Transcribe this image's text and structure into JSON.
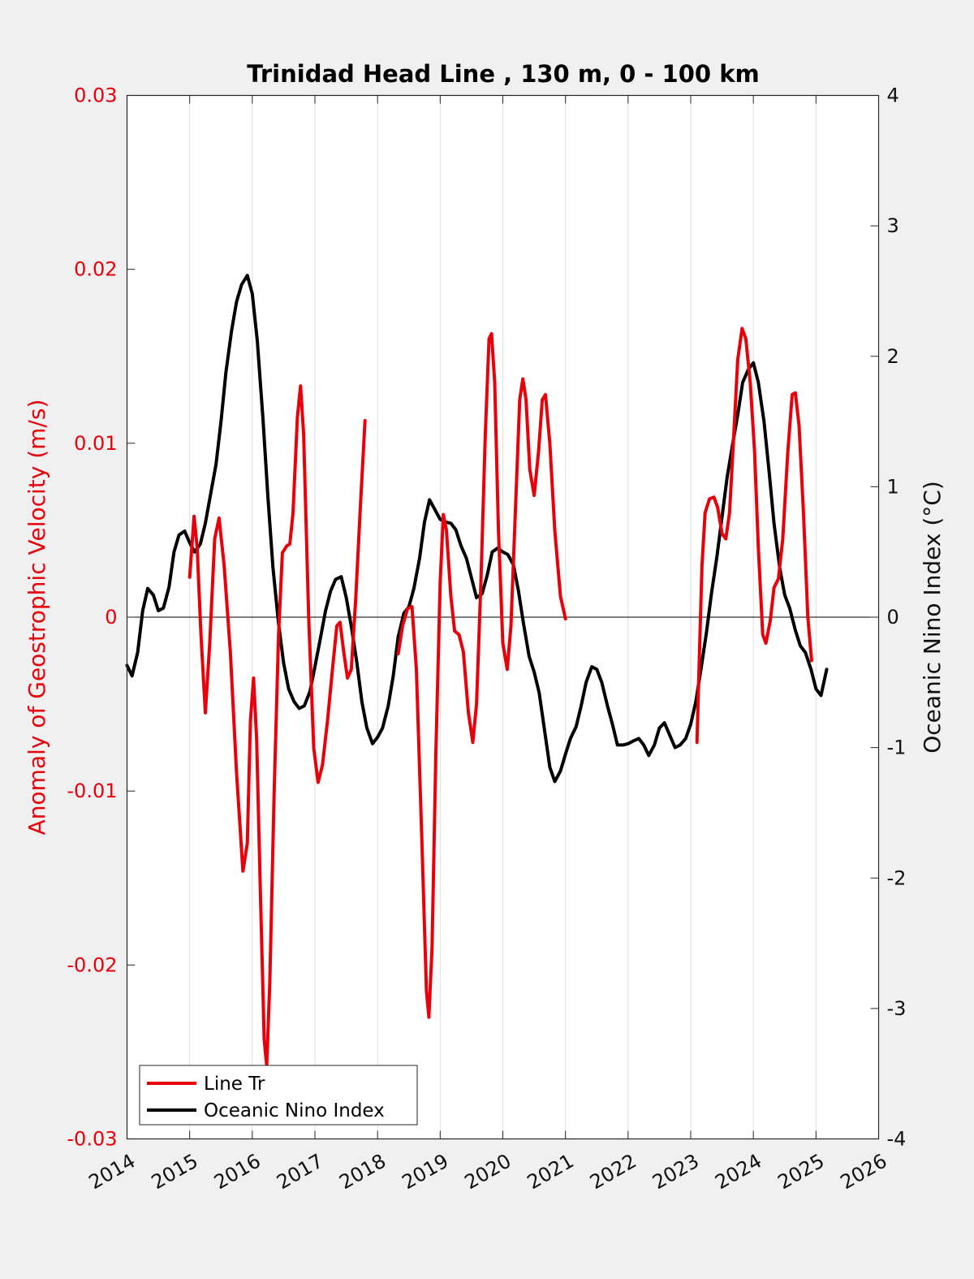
{
  "chart_data": {
    "type": "line",
    "title": "Trinidad Head Line , 130 m, 0 - 100 km",
    "ylabel_left": "Anomaly of Geostrophic Velocity (m/s)",
    "ylabel_right": "Oceanic Nino Index (°C)",
    "xlim": [
      2014,
      2026
    ],
    "ylim_left": [
      -0.03,
      0.03
    ],
    "ylim_right": [
      -4,
      4
    ],
    "x_ticks": [
      "2014",
      "2015",
      "2016",
      "2017",
      "2018",
      "2019",
      "2020",
      "2021",
      "2022",
      "2023",
      "2024",
      "2025",
      "2026"
    ],
    "y_left_ticks": [
      "-0.03",
      "-0.02",
      "-0.01",
      "0",
      "0.01",
      "0.02",
      "0.03"
    ],
    "y_right_ticks": [
      "-4",
      "-3",
      "-2",
      "-1",
      "0",
      "1",
      "2",
      "3",
      "4"
    ],
    "grid": "vertical",
    "legend_position": "bottom-left",
    "colors": {
      "velocity": "#e8000b",
      "oni": "#000000",
      "zero_line": "#000000",
      "background": "#f0f0f0"
    },
    "series": [
      {
        "name": "Line Tr",
        "axis": "left",
        "color": "#e8000b",
        "segments": [
          [
            [
              2015.0,
              0.0023
            ],
            [
              2015.07,
              0.0058
            ],
            [
              2015.12,
              0.004
            ],
            [
              2015.18,
              -0.001
            ],
            [
              2015.25,
              -0.0055
            ],
            [
              2015.32,
              -0.0015
            ],
            [
              2015.4,
              0.0045
            ],
            [
              2015.47,
              0.0057
            ],
            [
              2015.55,
              0.003
            ],
            [
              2015.65,
              -0.002
            ],
            [
              2015.75,
              -0.009
            ],
            [
              2015.85,
              -0.0146
            ],
            [
              2015.92,
              -0.013
            ],
            [
              2015.97,
              -0.006
            ],
            [
              2016.02,
              -0.0035
            ],
            [
              2016.07,
              -0.007
            ],
            [
              2016.13,
              -0.016
            ],
            [
              2016.19,
              -0.0243
            ],
            [
              2016.23,
              -0.0258
            ],
            [
              2016.28,
              -0.021
            ],
            [
              2016.35,
              -0.01
            ],
            [
              2016.42,
              -0.001
            ],
            [
              2016.48,
              0.0037
            ],
            [
              2016.55,
              0.0041
            ],
            [
              2016.6,
              0.0042
            ],
            [
              2016.65,
              0.006
            ],
            [
              2016.72,
              0.0115
            ],
            [
              2016.77,
              0.0133
            ],
            [
              2016.82,
              0.0105
            ],
            [
              2016.9,
              0.0
            ],
            [
              2016.98,
              -0.0075
            ],
            [
              2017.05,
              -0.0095
            ],
            [
              2017.12,
              -0.0085
            ],
            [
              2017.2,
              -0.006
            ],
            [
              2017.28,
              -0.003
            ],
            [
              2017.35,
              -0.0005
            ],
            [
              2017.4,
              -0.0003
            ],
            [
              2017.46,
              -0.002
            ],
            [
              2017.52,
              -0.0035
            ],
            [
              2017.58,
              -0.003
            ],
            [
              2017.65,
              0.001
            ],
            [
              2017.72,
              0.006
            ],
            [
              2017.8,
              0.0113
            ]
          ],
          [
            [
              2018.33,
              -0.0021
            ],
            [
              2018.4,
              -0.0005
            ],
            [
              2018.48,
              0.0005
            ],
            [
              2018.55,
              0.0006
            ],
            [
              2018.62,
              -0.003
            ],
            [
              2018.7,
              -0.012
            ],
            [
              2018.78,
              -0.0215
            ],
            [
              2018.82,
              -0.023
            ],
            [
              2018.87,
              -0.019
            ],
            [
              2018.93,
              -0.008
            ],
            [
              2019.0,
              0.002
            ],
            [
              2019.05,
              0.0059
            ],
            [
              2019.1,
              0.005
            ],
            [
              2019.17,
              0.0012
            ],
            [
              2019.23,
              -0.0008
            ],
            [
              2019.3,
              -0.001
            ],
            [
              2019.37,
              -0.002
            ],
            [
              2019.45,
              -0.0055
            ],
            [
              2019.52,
              -0.0072
            ],
            [
              2019.58,
              -0.005
            ],
            [
              2019.65,
              0.002
            ],
            [
              2019.72,
              0.0105
            ],
            [
              2019.78,
              0.016
            ],
            [
              2019.82,
              0.0163
            ],
            [
              2019.87,
              0.0135
            ],
            [
              2019.93,
              0.005
            ],
            [
              2020.0,
              -0.0015
            ],
            [
              2020.07,
              -0.003
            ],
            [
              2020.13,
              -0.0005
            ],
            [
              2020.2,
              0.006
            ],
            [
              2020.27,
              0.0125
            ],
            [
              2020.32,
              0.0137
            ],
            [
              2020.37,
              0.0125
            ],
            [
              2020.43,
              0.0085
            ],
            [
              2020.5,
              0.007
            ],
            [
              2020.57,
              0.0095
            ],
            [
              2020.63,
              0.0125
            ],
            [
              2020.68,
              0.0128
            ],
            [
              2020.75,
              0.01
            ],
            [
              2020.83,
              0.005
            ],
            [
              2020.92,
              0.0012
            ],
            [
              2021.0,
              -0.0001
            ]
          ],
          [
            [
              2023.1,
              -0.0072
            ],
            [
              2023.14,
              -0.002
            ],
            [
              2023.18,
              0.003
            ],
            [
              2023.23,
              0.006
            ],
            [
              2023.3,
              0.0068
            ],
            [
              2023.37,
              0.0069
            ],
            [
              2023.43,
              0.0063
            ],
            [
              2023.5,
              0.0048
            ],
            [
              2023.56,
              0.0045
            ],
            [
              2023.62,
              0.006
            ],
            [
              2023.68,
              0.01
            ],
            [
              2023.75,
              0.0148
            ],
            [
              2023.82,
              0.0166
            ],
            [
              2023.88,
              0.016
            ],
            [
              2023.95,
              0.0135
            ],
            [
              2024.02,
              0.0095
            ],
            [
              2024.08,
              0.004
            ],
            [
              2024.15,
              -0.001
            ],
            [
              2024.2,
              -0.0015
            ],
            [
              2024.27,
              -0.0002
            ],
            [
              2024.33,
              0.0017
            ],
            [
              2024.4,
              0.0022
            ],
            [
              2024.47,
              0.0045
            ],
            [
              2024.55,
              0.0095
            ],
            [
              2024.62,
              0.0128
            ],
            [
              2024.67,
              0.0129
            ],
            [
              2024.73,
              0.011
            ],
            [
              2024.8,
              0.006
            ],
            [
              2024.87,
              0.0
            ],
            [
              2024.93,
              -0.0025
            ]
          ]
        ]
      },
      {
        "name": "Oceanic Nino Index",
        "axis": "right",
        "color": "#000000",
        "segments": [
          [
            [
              2014.0,
              -0.37
            ],
            [
              2014.08,
              -0.45
            ],
            [
              2014.17,
              -0.27
            ],
            [
              2014.25,
              0.05
            ],
            [
              2014.33,
              0.22
            ],
            [
              2014.42,
              0.17
            ],
            [
              2014.5,
              0.05
            ],
            [
              2014.58,
              0.07
            ],
            [
              2014.67,
              0.23
            ],
            [
              2014.75,
              0.5
            ],
            [
              2014.83,
              0.63
            ],
            [
              2014.92,
              0.66
            ],
            [
              2015.0,
              0.57
            ],
            [
              2015.08,
              0.5
            ],
            [
              2015.17,
              0.56
            ],
            [
              2015.25,
              0.72
            ],
            [
              2015.33,
              0.93
            ],
            [
              2015.42,
              1.17
            ],
            [
              2015.5,
              1.5
            ],
            [
              2015.58,
              1.88
            ],
            [
              2015.67,
              2.2
            ],
            [
              2015.75,
              2.42
            ],
            [
              2015.83,
              2.55
            ],
            [
              2015.92,
              2.62
            ],
            [
              2016.0,
              2.48
            ],
            [
              2016.08,
              2.12
            ],
            [
              2016.17,
              1.52
            ],
            [
              2016.25,
              0.92
            ],
            [
              2016.33,
              0.38
            ],
            [
              2016.42,
              -0.05
            ],
            [
              2016.5,
              -0.35
            ],
            [
              2016.58,
              -0.55
            ],
            [
              2016.67,
              -0.65
            ],
            [
              2016.75,
              -0.7
            ],
            [
              2016.83,
              -0.68
            ],
            [
              2016.92,
              -0.57
            ],
            [
              2017.0,
              -0.38
            ],
            [
              2017.08,
              -0.18
            ],
            [
              2017.17,
              0.05
            ],
            [
              2017.25,
              0.2
            ],
            [
              2017.33,
              0.29
            ],
            [
              2017.42,
              0.31
            ],
            [
              2017.5,
              0.15
            ],
            [
              2017.58,
              -0.07
            ],
            [
              2017.67,
              -0.35
            ],
            [
              2017.75,
              -0.65
            ],
            [
              2017.83,
              -0.85
            ],
            [
              2017.92,
              -0.97
            ],
            [
              2018.0,
              -0.92
            ],
            [
              2018.08,
              -0.85
            ],
            [
              2018.17,
              -0.68
            ],
            [
              2018.25,
              -0.45
            ],
            [
              2018.33,
              -0.15
            ],
            [
              2018.42,
              0.03
            ],
            [
              2018.5,
              0.08
            ],
            [
              2018.58,
              0.22
            ],
            [
              2018.67,
              0.45
            ],
            [
              2018.75,
              0.73
            ],
            [
              2018.83,
              0.9
            ],
            [
              2018.92,
              0.82
            ],
            [
              2019.0,
              0.75
            ],
            [
              2019.08,
              0.73
            ],
            [
              2019.17,
              0.72
            ],
            [
              2019.25,
              0.67
            ],
            [
              2019.33,
              0.55
            ],
            [
              2019.42,
              0.45
            ],
            [
              2019.5,
              0.3
            ],
            [
              2019.58,
              0.15
            ],
            [
              2019.67,
              0.18
            ],
            [
              2019.75,
              0.32
            ],
            [
              2019.83,
              0.5
            ],
            [
              2019.92,
              0.53
            ],
            [
              2020.0,
              0.5
            ],
            [
              2020.08,
              0.48
            ],
            [
              2020.17,
              0.4
            ],
            [
              2020.25,
              0.2
            ],
            [
              2020.33,
              -0.05
            ],
            [
              2020.42,
              -0.3
            ],
            [
              2020.5,
              -0.42
            ],
            [
              2020.58,
              -0.58
            ],
            [
              2020.67,
              -0.88
            ],
            [
              2020.75,
              -1.15
            ],
            [
              2020.83,
              -1.26
            ],
            [
              2020.92,
              -1.18
            ],
            [
              2021.0,
              -1.05
            ],
            [
              2021.08,
              -0.93
            ],
            [
              2021.17,
              -0.84
            ],
            [
              2021.25,
              -0.68
            ],
            [
              2021.33,
              -0.5
            ],
            [
              2021.42,
              -0.38
            ],
            [
              2021.5,
              -0.4
            ],
            [
              2021.58,
              -0.5
            ],
            [
              2021.67,
              -0.68
            ],
            [
              2021.75,
              -0.82
            ],
            [
              2021.83,
              -0.98
            ],
            [
              2021.92,
              -0.98
            ],
            [
              2022.0,
              -0.97
            ],
            [
              2022.08,
              -0.95
            ],
            [
              2022.17,
              -0.93
            ],
            [
              2022.25,
              -0.98
            ],
            [
              2022.33,
              -1.06
            ],
            [
              2022.42,
              -0.98
            ],
            [
              2022.5,
              -0.85
            ],
            [
              2022.58,
              -0.81
            ],
            [
              2022.67,
              -0.91
            ],
            [
              2022.75,
              -1.0
            ],
            [
              2022.83,
              -0.98
            ],
            [
              2022.92,
              -0.93
            ],
            [
              2023.0,
              -0.82
            ],
            [
              2023.08,
              -0.65
            ],
            [
              2023.17,
              -0.38
            ],
            [
              2023.25,
              -0.12
            ],
            [
              2023.33,
              0.18
            ],
            [
              2023.42,
              0.47
            ],
            [
              2023.5,
              0.77
            ],
            [
              2023.58,
              1.07
            ],
            [
              2023.67,
              1.33
            ],
            [
              2023.75,
              1.55
            ],
            [
              2023.83,
              1.8
            ],
            [
              2023.92,
              1.9
            ],
            [
              2024.0,
              1.95
            ],
            [
              2024.08,
              1.8
            ],
            [
              2024.17,
              1.5
            ],
            [
              2024.25,
              1.12
            ],
            [
              2024.33,
              0.72
            ],
            [
              2024.42,
              0.38
            ],
            [
              2024.5,
              0.17
            ],
            [
              2024.58,
              0.07
            ],
            [
              2024.67,
              -0.1
            ],
            [
              2024.75,
              -0.22
            ],
            [
              2024.83,
              -0.27
            ],
            [
              2024.92,
              -0.4
            ],
            [
              2025.0,
              -0.55
            ],
            [
              2025.08,
              -0.6
            ],
            [
              2025.17,
              -0.4
            ]
          ]
        ]
      }
    ]
  }
}
